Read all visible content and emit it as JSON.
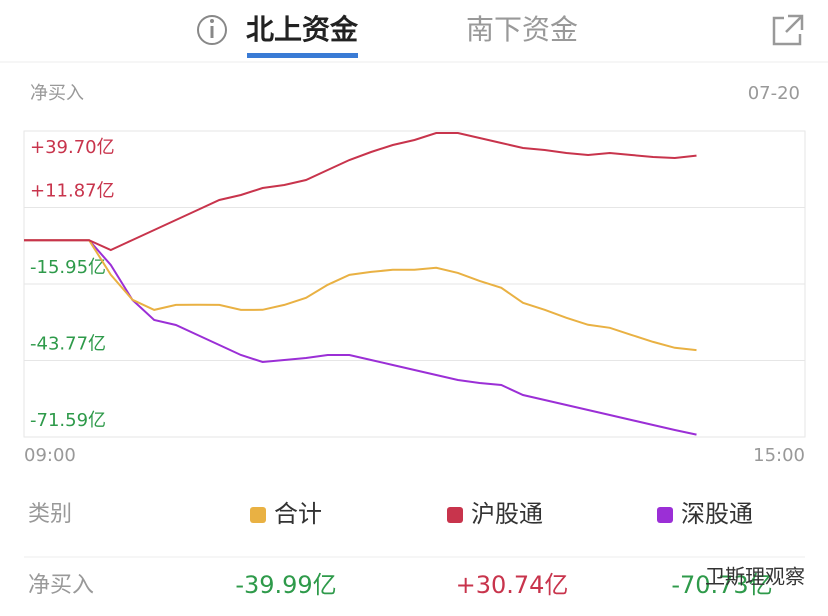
{
  "tabs": [
    "北上资金",
    "南下资金"
  ],
  "chart_header": {
    "label": "净买入",
    "date": "07-20"
  },
  "chart_data": {
    "type": "line",
    "x": [
      "09:00",
      "09:10",
      "09:20",
      "09:30",
      "09:40",
      "09:50",
      "10:00",
      "10:10",
      "10:20",
      "10:30",
      "10:40",
      "10:50",
      "11:00",
      "11:10",
      "11:20",
      "11:30",
      "11:40",
      "11:50",
      "12:00",
      "12:10",
      "12:20",
      "12:30",
      "12:40",
      "12:50",
      "13:00",
      "13:10",
      "13:20",
      "13:30",
      "13:40",
      "13:50",
      "14:00",
      "14:10"
    ],
    "xticks": [
      "09:00",
      "15:00"
    ],
    "xlim": [
      "09:00",
      "15:00"
    ],
    "ylim": [
      -71.59,
      39.7
    ],
    "yticks": [
      {
        "value": 39.7,
        "label": "+39.70亿"
      },
      {
        "value": 11.87,
        "label": "+11.87亿"
      },
      {
        "value": -15.95,
        "label": "-15.95亿"
      },
      {
        "value": -43.77,
        "label": "-43.77亿"
      },
      {
        "value": -71.59,
        "label": "-71.59亿"
      }
    ],
    "grid": true,
    "series": [
      {
        "name": "深股通",
        "color": "#9b2fd6",
        "values": [
          0,
          0,
          0,
          0,
          -9.03,
          -21.76,
          -29.04,
          -30.86,
          -34.49,
          -38.13,
          -41.77,
          -44.31,
          -43.59,
          -42.86,
          -41.77,
          -41.77,
          -43.59,
          -45.4,
          -47.22,
          -49.04,
          -50.86,
          -51.95,
          -52.68,
          -56.31,
          -58.13,
          -59.95,
          -61.77,
          -63.59,
          -65.41,
          -67.23,
          -69.04,
          -70.73
        ]
      },
      {
        "name": "合计",
        "color": "#e9b143",
        "values": [
          0,
          0,
          0,
          0,
          -12.61,
          -21.7,
          -25.35,
          -23.53,
          -23.52,
          -23.53,
          -25.35,
          -25.34,
          -23.53,
          -20.98,
          -16.25,
          -12.62,
          -11.53,
          -10.79,
          -10.79,
          -10.07,
          -11.89,
          -14.8,
          -17.34,
          -22.79,
          -25.34,
          -28.25,
          -30.8,
          -31.89,
          -34.44,
          -36.99,
          -39.16,
          -39.99
        ]
      },
      {
        "name": "沪股通",
        "color": "#c8344c",
        "values": [
          0,
          0,
          0,
          0,
          -3.58,
          0.06,
          3.69,
          7.33,
          10.97,
          14.6,
          16.42,
          18.97,
          20.06,
          21.88,
          25.52,
          29.15,
          32.06,
          34.61,
          36.43,
          38.97,
          38.97,
          37.15,
          35.34,
          33.52,
          32.79,
          31.7,
          30.97,
          31.7,
          30.97,
          30.24,
          29.88,
          30.74
        ]
      }
    ]
  },
  "table": {
    "header": "类别",
    "row_label": "净买入",
    "cells": [
      "-39.99亿",
      "+30.74亿",
      "-70.73亿"
    ]
  },
  "watermark": "卫斯理观察"
}
